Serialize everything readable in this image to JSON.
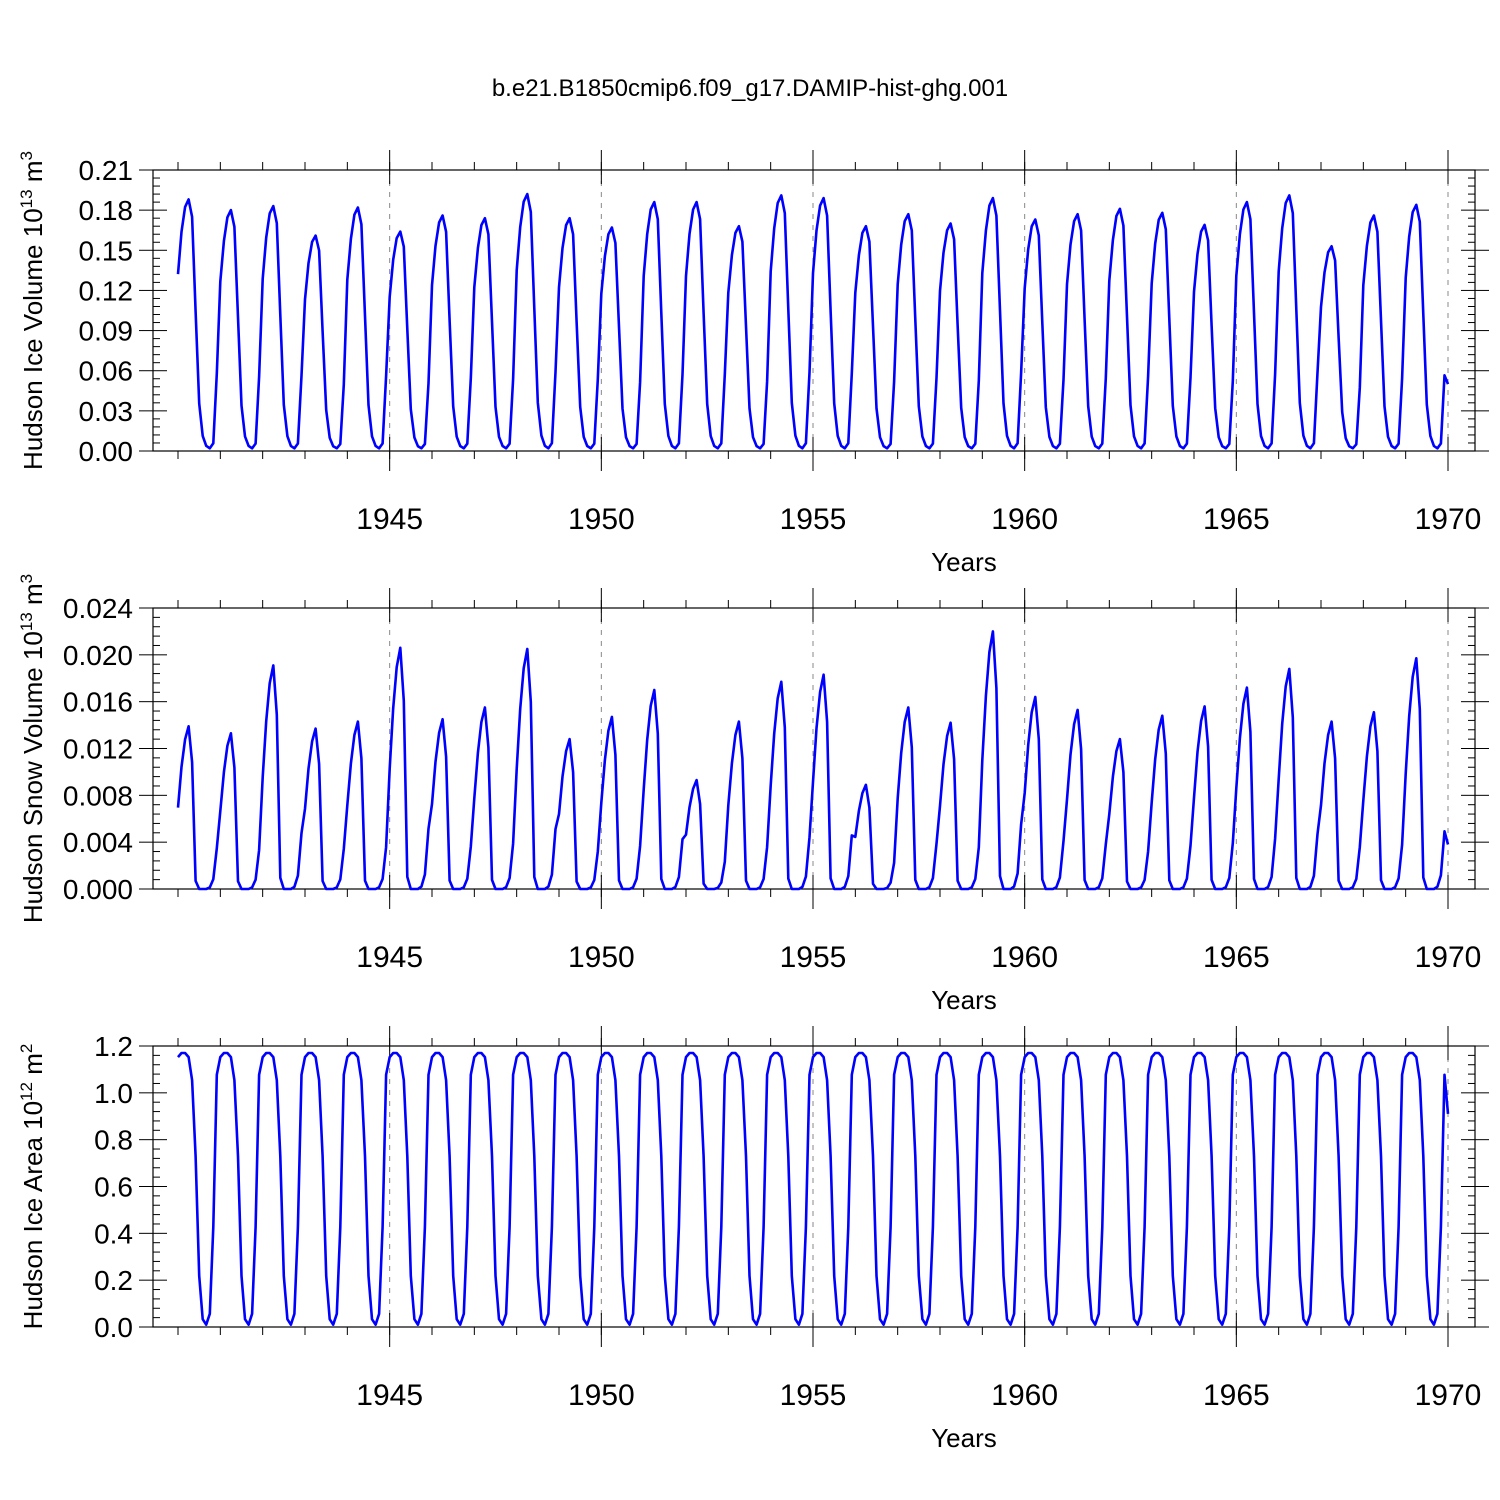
{
  "title": "b.e21.B1850cmip6.f09_g17.DAMIP-hist-ghg.001",
  "colors": {
    "series": "#0000ff",
    "axes": "#000000",
    "grid": "#888888"
  },
  "chart_data": [
    {
      "type": "line",
      "name": "ice-volume",
      "title": "",
      "ylabel": {
        "text": "Hudson Ice Volume 10",
        "exponent": "13",
        "unit": " m",
        "unit_exponent": "3"
      },
      "xlabel": "Years",
      "xlim": [
        1940.0,
        1970.0
      ],
      "ylim": [
        0.0,
        0.21
      ],
      "x_ticks": [
        "1945",
        "1950",
        "1955",
        "1960",
        "1965",
        "1970"
      ],
      "y_ticks": [
        "0.00",
        "0.03",
        "0.06",
        "0.09",
        "0.12",
        "0.15",
        "0.18",
        "0.21"
      ],
      "x_start": 1940.0,
      "x_step_months": 1,
      "minimum": 0.002,
      "series_maxima": [
        0.188,
        0.18,
        0.183,
        0.161,
        0.182,
        0.164,
        0.176,
        0.174,
        0.192,
        0.174,
        0.167,
        0.186,
        0.186,
        0.168,
        0.191,
        0.189,
        0.168,
        0.177,
        0.17,
        0.189,
        0.173,
        0.177,
        0.181,
        0.178,
        0.169,
        0.186,
        0.191,
        0.153,
        0.176,
        0.184
      ],
      "end_value": 0.05
    },
    {
      "type": "line",
      "name": "snow-volume",
      "title": "",
      "ylabel": {
        "text": "Hudson Snow Volume 10",
        "exponent": "13",
        "unit": " m",
        "unit_exponent": "3"
      },
      "xlabel": "Years",
      "xlim": [
        1940.0,
        1970.0
      ],
      "ylim": [
        0.0,
        0.024
      ],
      "x_ticks": [
        "1945",
        "1950",
        "1955",
        "1960",
        "1965",
        "1970"
      ],
      "y_ticks": [
        "0.000",
        "0.004",
        "0.008",
        "0.012",
        "0.016",
        "0.020",
        "0.024"
      ],
      "x_start": 1940.0,
      "x_step_months": 1,
      "minimum": 0.0,
      "series_maxima": [
        0.0139,
        0.0133,
        0.0191,
        0.0137,
        0.0143,
        0.0206,
        0.0145,
        0.0155,
        0.0205,
        0.0128,
        0.0147,
        0.017,
        0.0093,
        0.0143,
        0.0177,
        0.0183,
        0.0089,
        0.0155,
        0.0142,
        0.022,
        0.0164,
        0.0153,
        0.0128,
        0.0148,
        0.0156,
        0.0172,
        0.0188,
        0.0143,
        0.0151,
        0.0197
      ],
      "end_value": 0.0038
    },
    {
      "type": "line",
      "name": "ice-area",
      "title": "",
      "ylabel": {
        "text": "Hudson Ice Area 10",
        "exponent": "12",
        "unit": " m",
        "unit_exponent": "2"
      },
      "xlabel": "Years",
      "xlim": [
        1940.0,
        1970.0
      ],
      "ylim": [
        0.0,
        1.2
      ],
      "x_ticks": [
        "1945",
        "1950",
        "1955",
        "1960",
        "1965",
        "1970"
      ],
      "y_ticks": [
        "0.0",
        "0.2",
        "0.4",
        "0.6",
        "0.8",
        "1.0",
        "1.2"
      ],
      "x_start": 1940.0,
      "x_step_months": 1,
      "minimum": 0.01,
      "series_maxima": [
        1.17,
        1.17,
        1.17,
        1.17,
        1.17,
        1.17,
        1.17,
        1.17,
        1.17,
        1.17,
        1.17,
        1.17,
        1.17,
        1.17,
        1.17,
        1.17,
        1.17,
        1.17,
        1.17,
        1.17,
        1.17,
        1.17,
        1.17,
        1.17,
        1.17,
        1.17,
        1.17,
        1.17,
        1.17,
        1.17
      ],
      "end_value": 0.91
    }
  ]
}
